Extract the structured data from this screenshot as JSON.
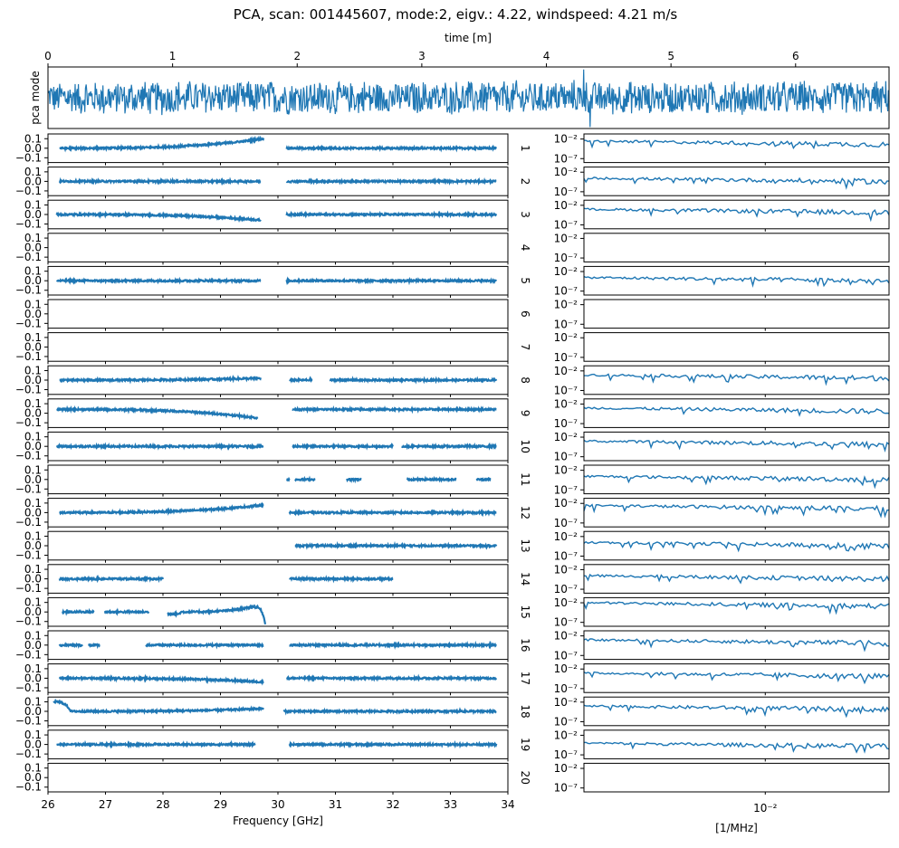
{
  "title": "PCA, scan: 001445607, mode:2, eigv.: 4.22, windspeed: 4.21 m/s",
  "colors": {
    "series": "#1f77b4",
    "axis": "#000000"
  },
  "chart_data": [
    {
      "type": "line",
      "name": "time-series",
      "xlabel": "time [m]",
      "ylabel": "pca mode",
      "xlim": [
        0,
        6.75
      ],
      "xticks": [
        "0",
        "1",
        "2",
        "3",
        "4",
        "5",
        "6"
      ],
      "xtick_values": [
        0,
        1,
        2,
        3,
        4,
        5,
        6
      ],
      "ylim": [
        -1,
        1
      ],
      "spikes": [
        {
          "x": 4.3,
          "y": 0.92
        },
        {
          "x": 4.35,
          "y": -0.95
        }
      ]
    },
    {
      "type": "scatter",
      "name": "frequency-panels",
      "xlabel": "Frequency [GHz]",
      "xlim": [
        26,
        34
      ],
      "xticks": [
        "26",
        "27",
        "28",
        "29",
        "30",
        "31",
        "32",
        "33",
        "34"
      ],
      "xtick_values": [
        26,
        27,
        28,
        29,
        30,
        31,
        32,
        33,
        34
      ],
      "ylim": [
        -0.15,
        0.15
      ],
      "yticks": [
        "0.1",
        "0.0",
        "−0.1"
      ],
      "ytick_values": [
        0.1,
        0.0,
        -0.1
      ],
      "panels": [
        {
          "label": "1",
          "segments": [
            [
              26.2,
              29.75,
              0.0,
              0.1
            ],
            [
              30.15,
              33.8,
              0.0,
              0.0
            ]
          ]
        },
        {
          "label": "2",
          "segments": [
            [
              26.2,
              29.7,
              0.0,
              0.0
            ],
            [
              30.15,
              33.8,
              0.0,
              0.0
            ]
          ]
        },
        {
          "label": "3",
          "segments": [
            [
              26.15,
              29.7,
              0.0,
              -0.06
            ],
            [
              30.15,
              33.8,
              0.0,
              0.0
            ]
          ]
        },
        {
          "label": "4",
          "segments": []
        },
        {
          "label": "5",
          "segments": [
            [
              26.15,
              29.7,
              0.0,
              0.0
            ],
            [
              30.15,
              33.8,
              0.0,
              0.0
            ]
          ]
        },
        {
          "label": "6",
          "segments": []
        },
        {
          "label": "7",
          "segments": []
        },
        {
          "label": "8",
          "segments": [
            [
              26.2,
              29.7,
              0.0,
              0.02
            ],
            [
              30.2,
              30.6,
              0.0,
              0.0
            ],
            [
              30.9,
              33.8,
              0.0,
              0.0
            ]
          ]
        },
        {
          "label": "9",
          "segments": [
            [
              26.15,
              29.65,
              0.04,
              -0.05
            ],
            [
              30.25,
              33.8,
              0.04,
              0.04
            ]
          ]
        },
        {
          "label": "10",
          "segments": [
            [
              26.15,
              29.75,
              0.0,
              0.0
            ],
            [
              30.25,
              32.0,
              0.0,
              0.0
            ],
            [
              32.15,
              33.8,
              0.0,
              0.0
            ]
          ]
        },
        {
          "label": "11",
          "segments": [
            [
              30.15,
              30.2,
              0.0,
              0.0
            ],
            [
              30.3,
              30.65,
              0.0,
              0.0
            ],
            [
              31.2,
              31.45,
              0.0,
              0.0
            ],
            [
              32.25,
              33.1,
              0.0,
              0.0
            ],
            [
              33.45,
              33.7,
              0.0,
              0.0
            ]
          ]
        },
        {
          "label": "12",
          "segments": [
            [
              26.2,
              29.75,
              0.0,
              0.08
            ],
            [
              30.2,
              33.8,
              0.0,
              0.0
            ]
          ]
        },
        {
          "label": "13",
          "segments": [
            [
              30.3,
              33.8,
              0.0,
              0.0
            ]
          ]
        },
        {
          "label": "14",
          "segments": [
            [
              26.2,
              28.0,
              0.0,
              0.0
            ],
            [
              30.2,
              32.0,
              0.0,
              0.0
            ]
          ]
        },
        {
          "label": "15",
          "segments": [
            [
              26.25,
              26.8,
              0.0,
              0.0
            ],
            [
              26.98,
              27.75,
              0.0,
              0.0
            ],
            [
              28.08,
              28.3,
              -0.02,
              -0.02
            ],
            [
              28.3,
              29.6,
              0.0,
              0.06
            ],
            [
              29.6,
              29.78,
              0.05,
              -0.12
            ]
          ]
        },
        {
          "label": "16",
          "segments": [
            [
              26.2,
              26.6,
              0.0,
              0.0
            ],
            [
              26.7,
              26.9,
              0.0,
              0.0
            ],
            [
              27.7,
              29.75,
              0.0,
              0.0
            ],
            [
              30.2,
              33.8,
              0.0,
              0.0
            ]
          ]
        },
        {
          "label": "17",
          "segments": [
            [
              26.2,
              29.75,
              0.0,
              -0.04
            ],
            [
              30.15,
              33.8,
              0.0,
              0.0
            ]
          ]
        },
        {
          "label": "18",
          "segments": [
            [
              26.1,
              26.4,
              0.1,
              0.0
            ],
            [
              26.4,
              29.75,
              0.0,
              0.03
            ],
            [
              30.1,
              33.8,
              0.0,
              0.0
            ]
          ]
        },
        {
          "label": "19",
          "segments": [
            [
              26.15,
              29.6,
              0.0,
              0.0
            ],
            [
              30.2,
              33.8,
              0.0,
              0.0
            ]
          ]
        },
        {
          "label": "20",
          "segments": []
        }
      ]
    },
    {
      "type": "line",
      "name": "spectrum-panels",
      "xlabel": "[1/MHz]",
      "xscale": "log",
      "yscale": "log",
      "xlim": [
        0.002,
        0.03
      ],
      "xticks": [
        "10⁻²"
      ],
      "xtick_values": [
        0.01
      ],
      "ylim": [
        1e-08,
        0.2
      ],
      "yticks": [
        "10⁻²",
        "10⁻⁷"
      ],
      "ytick_values": [
        0.01,
        1e-07
      ],
      "active_panels": [
        "1",
        "2",
        "3",
        "5",
        "8",
        "9",
        "10",
        "11",
        "12",
        "13",
        "14",
        "15",
        "16",
        "17",
        "18",
        "19"
      ],
      "panel_levels": {
        "1": 0.003,
        "2": 0.0003,
        "3": 0.001,
        "5": 0.0003,
        "8": 0.001,
        "9": 0.001,
        "10": 0.001,
        "11": 0.0003,
        "12": 0.003,
        "13": 0.0003,
        "14": 0.0003,
        "15": 0.01,
        "16": 0.001,
        "17": 0.001,
        "18": 0.001,
        "19": 0.0001
      }
    }
  ]
}
